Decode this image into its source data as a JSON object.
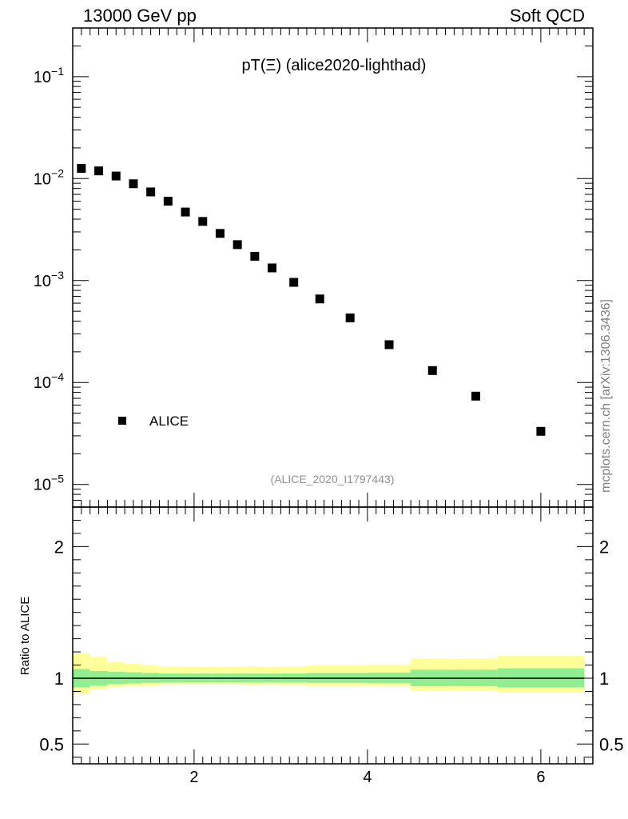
{
  "header": {
    "left": "13000 GeV pp",
    "right": "Soft QCD"
  },
  "side_label": "mcplots.cern.ch [arXiv:1306.3436]",
  "colors": {
    "data": "#000000",
    "band_inner": "#90ee90",
    "band_outer": "#ffff99",
    "watermark": "#909090"
  },
  "chart_data": [
    {
      "type": "scatter",
      "title": "pT(Ξ) (alice2020-lighthad)",
      "watermark": "(ALICE_2020_I1797443)",
      "legend": {
        "entries": [
          "ALICE"
        ],
        "placement": "bottom-left"
      },
      "yscale": "log",
      "ylim": [
        6e-06,
        0.3
      ],
      "xlim": [
        0.6,
        6.6
      ],
      "y_ticks": [
        {
          "value": 1e-05,
          "base": "10",
          "exp": "−5"
        },
        {
          "value": 0.0001,
          "base": "10",
          "exp": "−4"
        },
        {
          "value": 0.001,
          "base": "10",
          "exp": "−3"
        },
        {
          "value": 0.01,
          "base": "10",
          "exp": "−2"
        },
        {
          "value": 0.1,
          "base": "10",
          "exp": "−1"
        }
      ],
      "series": [
        {
          "name": "ALICE",
          "x": [
            0.7,
            0.9,
            1.1,
            1.3,
            1.5,
            1.7,
            1.9,
            2.1,
            2.3,
            2.5,
            2.7,
            2.9,
            3.15,
            3.45,
            3.8,
            4.25,
            4.75,
            5.25,
            6.0
          ],
          "y": [
            0.0126,
            0.0119,
            0.0106,
            0.0089,
            0.0074,
            0.006,
            0.0047,
            0.0038,
            0.0029,
            0.00225,
            0.00173,
            0.00133,
            0.00096,
            0.00066,
            0.00043,
            0.000235,
            0.000131,
            7.35e-05,
            3.32e-05
          ]
        }
      ]
    },
    {
      "type": "area",
      "ylabel": "Ratio to ALICE",
      "xlim": [
        0.6,
        6.6
      ],
      "ylim": [
        0.35,
        2.3
      ],
      "x_ticks": [
        2,
        4,
        6
      ],
      "y_ticks": [
        0.5,
        1,
        2
      ],
      "reference_line": 1,
      "bins": [
        {
          "lo": 0.6,
          "hi": 0.8,
          "inner": [
            0.93,
            1.07
          ],
          "outer": [
            0.885,
            1.19
          ]
        },
        {
          "lo": 0.8,
          "hi": 1.0,
          "inner": [
            0.945,
            1.055
          ],
          "outer": [
            0.915,
            1.165
          ]
        },
        {
          "lo": 1.0,
          "hi": 1.2,
          "inner": [
            0.955,
            1.05
          ],
          "outer": [
            0.935,
            1.125
          ]
        },
        {
          "lo": 1.2,
          "hi": 1.4,
          "inner": [
            0.96,
            1.045
          ],
          "outer": [
            0.94,
            1.11
          ]
        },
        {
          "lo": 1.4,
          "hi": 1.6,
          "inner": [
            0.965,
            1.04
          ],
          "outer": [
            0.945,
            1.1
          ]
        },
        {
          "lo": 1.6,
          "hi": 1.8,
          "inner": [
            0.968,
            1.036
          ],
          "outer": [
            0.95,
            1.09
          ]
        },
        {
          "lo": 1.8,
          "hi": 2.0,
          "inner": [
            0.97,
            1.035
          ],
          "outer": [
            0.952,
            1.085
          ]
        },
        {
          "lo": 2.0,
          "hi": 2.2,
          "inner": [
            0.97,
            1.035
          ],
          "outer": [
            0.952,
            1.085
          ]
        },
        {
          "lo": 2.2,
          "hi": 2.4,
          "inner": [
            0.97,
            1.035
          ],
          "outer": [
            0.952,
            1.085
          ]
        },
        {
          "lo": 2.4,
          "hi": 2.6,
          "inner": [
            0.97,
            1.035
          ],
          "outer": [
            0.952,
            1.085
          ]
        },
        {
          "lo": 2.6,
          "hi": 2.8,
          "inner": [
            0.968,
            1.036
          ],
          "outer": [
            0.948,
            1.09
          ]
        },
        {
          "lo": 2.8,
          "hi": 3.0,
          "inner": [
            0.97,
            1.035
          ],
          "outer": [
            0.95,
            1.085
          ]
        },
        {
          "lo": 3.0,
          "hi": 3.3,
          "inner": [
            0.968,
            1.036
          ],
          "outer": [
            0.948,
            1.09
          ]
        },
        {
          "lo": 3.3,
          "hi": 3.6,
          "inner": [
            0.965,
            1.04
          ],
          "outer": [
            0.945,
            1.1
          ]
        },
        {
          "lo": 3.6,
          "hi": 4.0,
          "inner": [
            0.965,
            1.04
          ],
          "outer": [
            0.945,
            1.1
          ]
        },
        {
          "lo": 4.0,
          "hi": 4.5,
          "inner": [
            0.962,
            1.043
          ],
          "outer": [
            0.94,
            1.105
          ]
        },
        {
          "lo": 4.5,
          "hi": 5.0,
          "inner": [
            0.94,
            1.065
          ],
          "outer": [
            0.905,
            1.15
          ]
        },
        {
          "lo": 5.0,
          "hi": 5.5,
          "inner": [
            0.94,
            1.065
          ],
          "outer": [
            0.905,
            1.15
          ]
        },
        {
          "lo": 5.5,
          "hi": 6.5,
          "inner": [
            0.93,
            1.075
          ],
          "outer": [
            0.895,
            1.17
          ]
        }
      ]
    }
  ]
}
